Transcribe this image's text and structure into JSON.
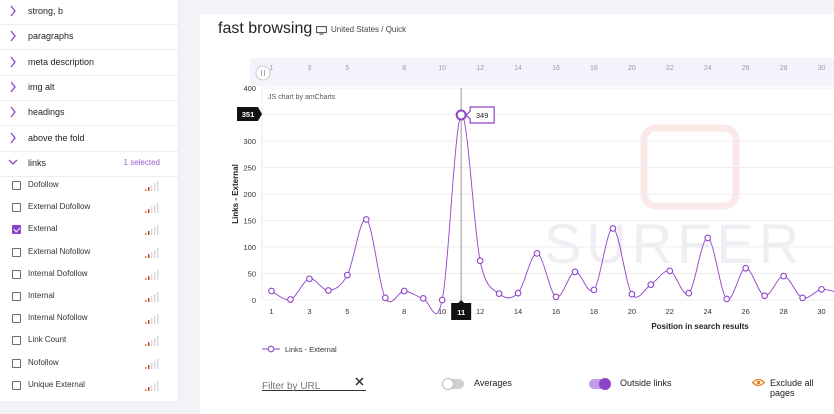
{
  "sidebar": {
    "sections": [
      {
        "label": "strong, b",
        "expanded": false
      },
      {
        "label": "paragraphs",
        "expanded": false
      },
      {
        "label": "meta description",
        "expanded": false
      },
      {
        "label": "img alt",
        "expanded": false
      },
      {
        "label": "headings",
        "expanded": false
      },
      {
        "label": "above the fold",
        "expanded": false
      },
      {
        "label": "links",
        "expanded": true,
        "badge": "1 selected"
      }
    ],
    "metrics": [
      {
        "label": "Dofollow",
        "checked": false
      },
      {
        "label": "External Dofollow",
        "checked": false
      },
      {
        "label": "External",
        "checked": true
      },
      {
        "label": "External Nofollow",
        "checked": false
      },
      {
        "label": "Internal Dofollow",
        "checked": false
      },
      {
        "label": "Internal",
        "checked": false
      },
      {
        "label": "Internal Nofollow",
        "checked": false
      },
      {
        "label": "Link Count",
        "checked": false
      },
      {
        "label": "Nofollow",
        "checked": false
      },
      {
        "label": "Unique External",
        "checked": false
      }
    ]
  },
  "header": {
    "title": "fast browsing",
    "location": "United States / Quick",
    "location_icon": "monitor-icon"
  },
  "chart_data": {
    "type": "line",
    "credit": "JS chart by amCharts",
    "watermark": "SURFER",
    "xlabel": "Position in search results",
    "ylabel": "Links - External",
    "ylim": [
      0,
      400
    ],
    "yticks": [
      0,
      50,
      100,
      150,
      200,
      250,
      300,
      350,
      400
    ],
    "xlim": [
      0.5,
      31.5
    ],
    "xticks": [
      1,
      3,
      5,
      8,
      10,
      12,
      14,
      16,
      18,
      20,
      22,
      24,
      26,
      28,
      30
    ],
    "top_ticks": [
      1,
      3,
      5,
      8,
      10,
      12,
      14,
      16,
      18,
      20,
      22,
      24,
      26,
      28,
      30
    ],
    "x": [
      1,
      2,
      3,
      4,
      5,
      6,
      7,
      8,
      9,
      10,
      11,
      12,
      13,
      14,
      15,
      16,
      17,
      18,
      19,
      20,
      21,
      22,
      23,
      24,
      25,
      26,
      27,
      28,
      29,
      30,
      31
    ],
    "series": [
      {
        "name": "Links - External",
        "color": "#8e44c9",
        "values": [
          17,
          1,
          40,
          18,
          47,
          152,
          4,
          17,
          3,
          0,
          349,
          74,
          12,
          13,
          88,
          6,
          53,
          19,
          135,
          11,
          29,
          55,
          13,
          117,
          2,
          60,
          8,
          45,
          4,
          20,
          12
        ]
      }
    ],
    "cursor": {
      "x": 11,
      "x_label": "11",
      "y_value": 351,
      "y_label": "351",
      "tooltip": "349"
    },
    "legend_placement": "bottom-left"
  },
  "controls": {
    "filter_placeholder": "Filter by URL",
    "averages_label": "Averages",
    "averages_on": false,
    "outside_label": "Outside links",
    "outside_on": true,
    "exclude_label": "Exclude all pages",
    "accent_color": "#8e44c9",
    "exclude_color": "#e67e22"
  }
}
